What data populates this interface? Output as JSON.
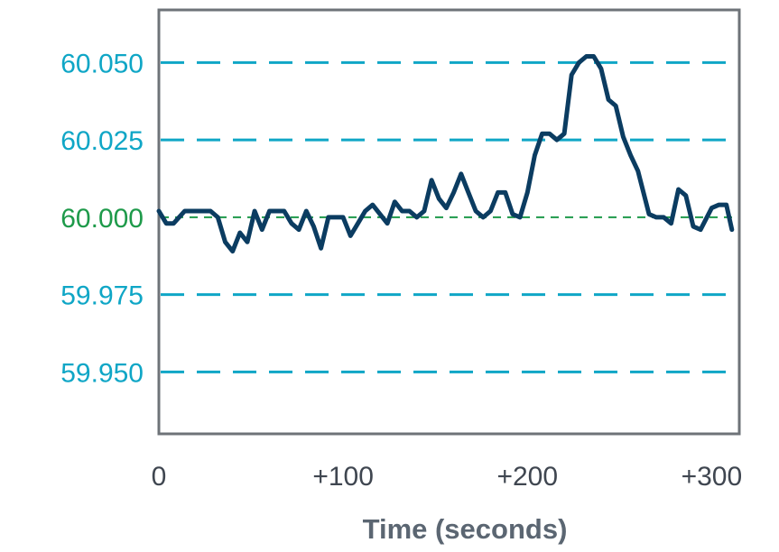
{
  "chart_data": {
    "type": "line",
    "title": "",
    "xlabel": "Time (seconds)",
    "ylabel": "",
    "xlim": [
      0,
      315
    ],
    "ylim": [
      59.93,
      60.067
    ],
    "x_ticks": [
      {
        "value": 0,
        "label": "0"
      },
      {
        "value": 100,
        "label": "+100"
      },
      {
        "value": 200,
        "label": "+200"
      },
      {
        "value": 300,
        "label": "+300"
      }
    ],
    "y_ticks": [
      {
        "value": 60.05,
        "label": "60.050",
        "color": "#0fa6c6"
      },
      {
        "value": 60.025,
        "label": "60.025",
        "color": "#0fa6c6"
      },
      {
        "value": 60.0,
        "label": "60.000",
        "color": "#1e9a4a",
        "nominal": true
      },
      {
        "value": 59.975,
        "label": "59.975",
        "color": "#0fa6c6"
      },
      {
        "value": 59.95,
        "label": "59.950",
        "color": "#0fa6c6"
      }
    ],
    "grid": "horizontal dashed",
    "series": [
      {
        "color": "#0b3c61",
        "x": [
          0,
          4,
          8,
          14,
          22,
          28,
          32,
          36,
          40,
          44,
          48,
          52,
          56,
          60,
          64,
          68,
          72,
          76,
          80,
          84,
          88,
          92,
          96,
          100,
          104,
          108,
          112,
          116,
          120,
          124,
          128,
          132,
          136,
          140,
          144,
          148,
          152,
          156,
          160,
          164,
          168,
          172,
          176,
          180,
          184,
          188,
          192,
          196,
          200,
          204,
          208,
          212,
          216,
          220,
          224,
          228,
          232,
          236,
          240,
          244,
          248,
          252,
          256,
          260,
          266,
          270,
          274,
          278,
          282,
          286,
          290,
          294,
          300,
          304,
          308,
          311
        ],
        "y": [
          60.002,
          59.998,
          59.998,
          60.002,
          60.002,
          60.002,
          60.0,
          59.992,
          59.989,
          59.995,
          59.992,
          60.002,
          59.996,
          60.002,
          60.002,
          60.002,
          59.998,
          59.996,
          60.002,
          59.997,
          59.99,
          60.0,
          60.0,
          60.0,
          59.994,
          59.998,
          60.002,
          60.004,
          60.001,
          59.998,
          60.005,
          60.002,
          60.002,
          60.0,
          60.002,
          60.012,
          60.006,
          60.003,
          60.008,
          60.014,
          60.008,
          60.002,
          60.0,
          60.002,
          60.008,
          60.008,
          60.001,
          60.0,
          60.008,
          60.02,
          60.027,
          60.027,
          60.025,
          60.027,
          60.046,
          60.05,
          60.052,
          60.052,
          60.048,
          60.038,
          60.036,
          60.026,
          60.02,
          60.015,
          60.001,
          60.0,
          60.0,
          59.998,
          60.009,
          60.007,
          59.997,
          59.996,
          60.003,
          60.004,
          60.004,
          59.996
        ]
      }
    ]
  }
}
